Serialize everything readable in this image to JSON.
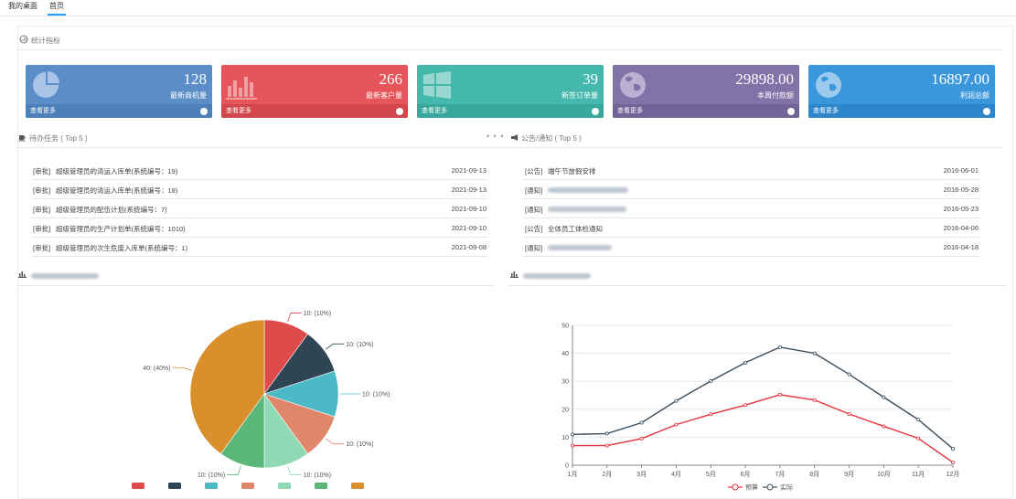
{
  "tabs": [
    {
      "label": "我的桌面",
      "active": false
    },
    {
      "label": "首页",
      "active": true
    }
  ],
  "stats_section": {
    "title": "统计指标"
  },
  "stat_cards": [
    {
      "value": "128",
      "label": "最新商机量",
      "more": "查看更多",
      "color": "#5b8ec9",
      "foot": "#4d7fb8",
      "icon": "pie-chart-icon"
    },
    {
      "value": "266",
      "label": "最新客户量",
      "more": "查看更多",
      "color": "#e5555a",
      "foot": "#d2474c",
      "icon": "bar-chart-icon"
    },
    {
      "value": "39",
      "label": "新签订单量",
      "more": "查看更多",
      "color": "#45b8ad",
      "foot": "#38a89d",
      "icon": "windows-icon"
    },
    {
      "value": "29898.00",
      "label": "本周付款额",
      "more": "查看更多",
      "color": "#8073a8",
      "foot": "#706498",
      "icon": "globe-icon"
    },
    {
      "value": "16897.00",
      "label": "利润总额",
      "more": "查看更多",
      "color": "#3a97dc",
      "foot": "#2d86c9",
      "icon": "globe-icon"
    }
  ],
  "tasks": {
    "title": "待办任务 ( Top 5 )",
    "items": [
      {
        "tag": "[审批]",
        "text": "超级管理员的清运入库单(系统编号：19)",
        "date": "2021-09-13"
      },
      {
        "tag": "[审批]",
        "text": "超级管理员的清运入库单(系统编号：18)",
        "date": "2021-09-13"
      },
      {
        "tag": "[审批]",
        "text": "超级管理员的配伍计划(系统编号：7)",
        "date": "2021-09-10"
      },
      {
        "tag": "[审批]",
        "text": "超级管理员的生产计划单(系统编号：1010)",
        "date": "2021-09-10"
      },
      {
        "tag": "[审批]",
        "text": "超级管理员的次生危废入库单(系统编号：1)",
        "date": "2021-09-08"
      }
    ]
  },
  "notices": {
    "title": "公告/通知 ( Top 5 )",
    "items": [
      {
        "tag": "[公告]",
        "text": "端午节放假安排",
        "date": "2016-06-01"
      },
      {
        "tag": "[通知]",
        "text": "",
        "date": "2016-05-28"
      },
      {
        "tag": "[通知]",
        "text": "",
        "date": "2016-05-23"
      },
      {
        "tag": "[公告]",
        "text": "全体员工体检通知",
        "date": "2016-04-06"
      },
      {
        "tag": "[通知]",
        "text": "",
        "date": "2016-04-18"
      }
    ]
  },
  "chart_data": [
    {
      "type": "pie",
      "slices": [
        {
          "value": 10,
          "label": "10: (10%)",
          "color": "#dd4b4b"
        },
        {
          "value": 10,
          "label": "10: (10%)",
          "color": "#2f4554"
        },
        {
          "value": 10,
          "label": "10: (10%)",
          "color": "#4cb9c6"
        },
        {
          "value": 10,
          "label": "10: (10%)",
          "color": "#e0866a"
        },
        {
          "value": 10,
          "label": "10: (10%)",
          "color": "#8fdab5"
        },
        {
          "value": 10,
          "label": "10: (10%)",
          "color": "#5bb679"
        },
        {
          "value": 40,
          "label": "40: (40%)",
          "color": "#d98f2c"
        }
      ]
    },
    {
      "type": "line",
      "categories": [
        "1月",
        "2月",
        "3月",
        "4月",
        "5月",
        "6月",
        "7月",
        "8月",
        "9月",
        "10月",
        "11月",
        "12月"
      ],
      "ylim": [
        0,
        50
      ],
      "yticks": [
        0,
        10,
        20,
        30,
        40,
        50
      ],
      "series": [
        {
          "name": "预算",
          "color": "#e5323e",
          "values": [
            7,
            7,
            9.5,
            14.5,
            18.2,
            21.5,
            25.2,
            23.3,
            18.3,
            13.9,
            9.6,
            1
          ]
        },
        {
          "name": "实际",
          "color": "#3d4e5e",
          "values": [
            11,
            11.3,
            15.2,
            23,
            30.1,
            36.7,
            42.2,
            40,
            32.5,
            24.3,
            16.3,
            5.9
          ]
        }
      ]
    }
  ]
}
